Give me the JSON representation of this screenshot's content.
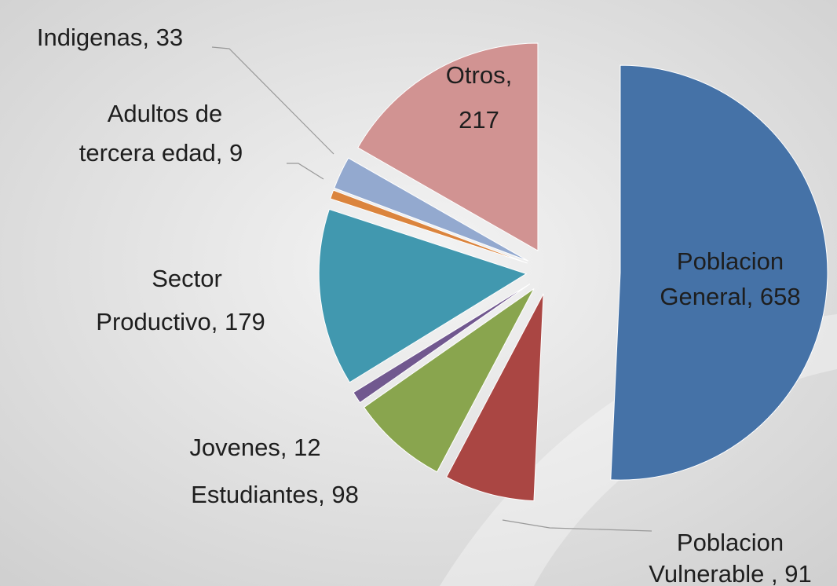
{
  "chart_data": {
    "type": "pie",
    "labels": [
      [
        "Poblacion",
        "General, 658"
      ],
      [
        "Poblacion",
        "Vulnerable , 91"
      ],
      [
        "Estudiantes, 98"
      ],
      [
        "Jovenes, 12"
      ],
      [
        "Sector",
        "Productivo, 179"
      ],
      [
        "Adultos de",
        "tercera edad, 9"
      ],
      [
        "Indigenas, 33"
      ],
      [
        "Otros,",
        "217"
      ]
    ],
    "values": [
      658,
      91,
      98,
      12,
      179,
      9,
      33,
      217
    ],
    "colors": [
      "#4572a7",
      "#aa4643",
      "#89a54e",
      "#71588f",
      "#4198af",
      "#db843d",
      "#93a9cf",
      "#d19392"
    ]
  }
}
